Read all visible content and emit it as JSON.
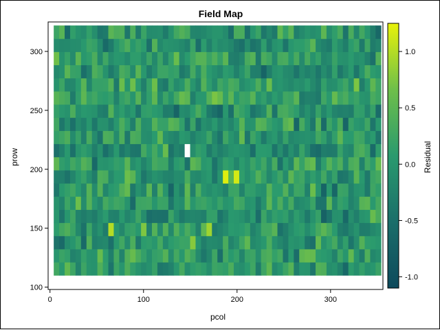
{
  "chart_data": {
    "type": "heatmap",
    "title": "Field Map",
    "xlabel": "pcol",
    "ylabel": "prow",
    "colorbar_label": "Residual",
    "xlim": [
      -2,
      356
    ],
    "ylim": [
      98,
      325
    ],
    "x_ticks": [
      0,
      100,
      200,
      300
    ],
    "y_ticks": [
      100,
      150,
      200,
      250,
      300
    ],
    "colorbar_ticks": [
      -1.0,
      -0.5,
      0.0,
      0.5,
      1.0
    ],
    "colorbar_tick_labels": [
      "-1.0",
      "-0.5",
      "0.0",
      "0.5",
      "1.0"
    ],
    "value_range": [
      -1.1,
      1.25
    ],
    "grid": false,
    "colormap": [
      "#0e4a5c",
      "#1b6e6a",
      "#2a9a6e",
      "#6ebf4a",
      "#e8f20a"
    ],
    "cell_x_range": [
      4,
      354
    ],
    "cell_y_range": [
      110,
      322
    ],
    "approx_cell_columns": 60,
    "approx_cell_rows": 19,
    "notable_cells": [
      {
        "pcol": 144,
        "prow": 211,
        "value": "missing"
      },
      {
        "pcol": 188,
        "prow": 190,
        "value": 1.2
      },
      {
        "pcol": 199,
        "prow": 190,
        "value": 1.15
      },
      {
        "pcol": 66,
        "prow": 154,
        "value": 1.0
      },
      {
        "pcol": 168,
        "prow": 154,
        "value": 0.9
      }
    ]
  }
}
